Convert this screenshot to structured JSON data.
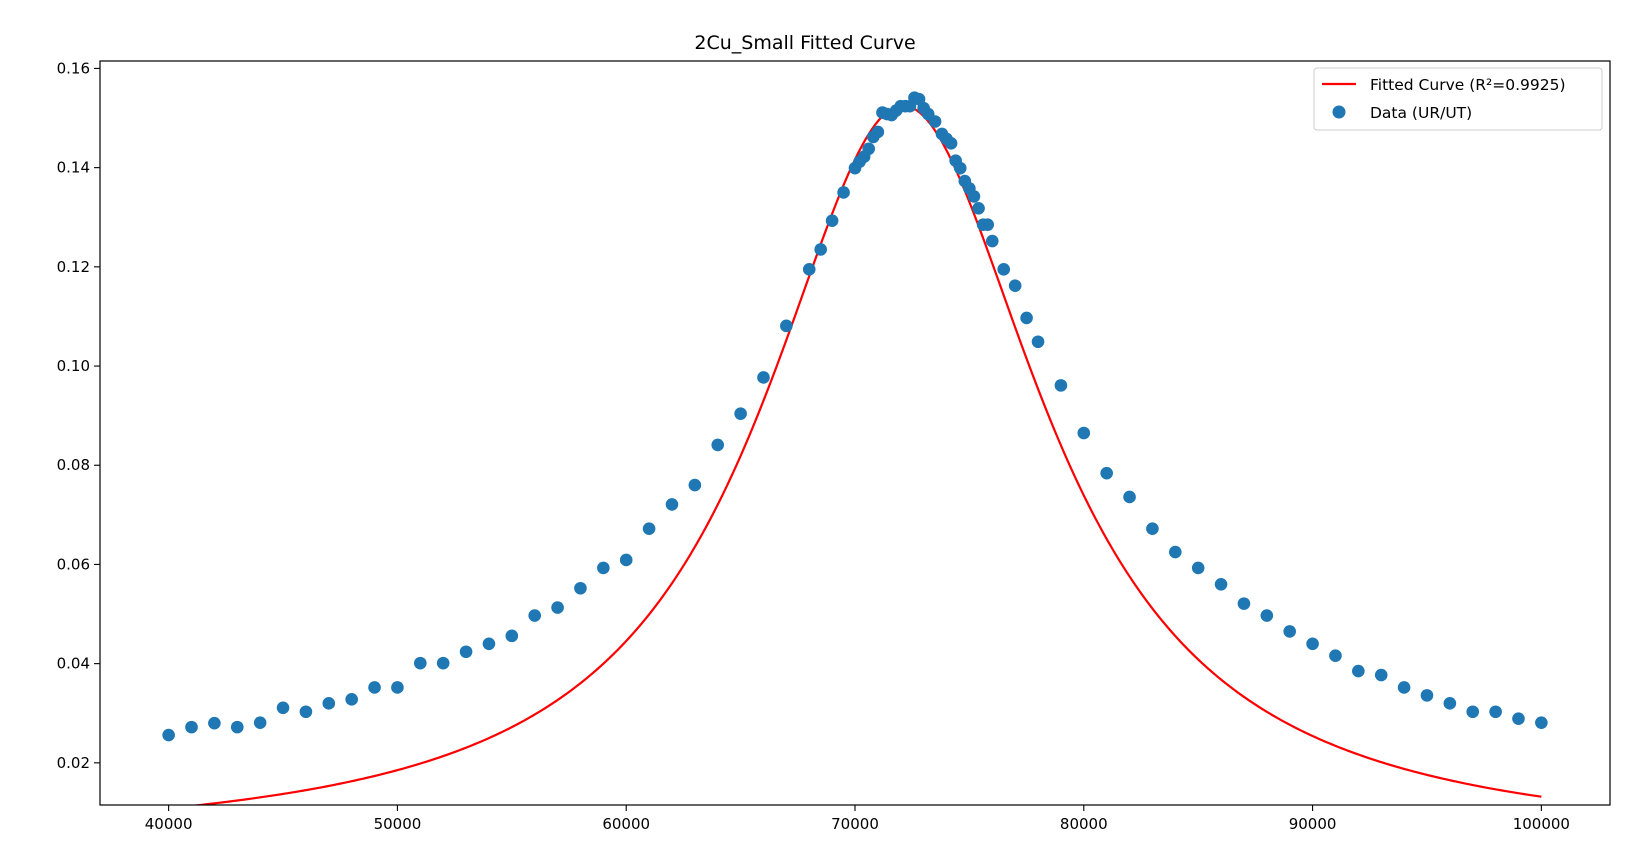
{
  "chart_data": {
    "type": "scatter",
    "title": "2Cu_Small Fitted Curve",
    "xlabel": "",
    "ylabel": "",
    "xlim": [
      37000,
      103000
    ],
    "ylim": [
      0.0115,
      0.1615
    ],
    "xticks": [
      40000,
      50000,
      60000,
      70000,
      80000,
      90000,
      100000
    ],
    "xtick_labels": [
      "40000",
      "50000",
      "60000",
      "70000",
      "80000",
      "90000",
      "100000"
    ],
    "yticks": [
      0.02,
      0.04,
      0.06,
      0.08,
      0.1,
      0.12,
      0.14,
      0.16
    ],
    "ytick_labels": [
      "0.02",
      "0.04",
      "0.06",
      "0.08",
      "0.10",
      "0.12",
      "0.14",
      "0.16"
    ],
    "grid": false,
    "legend": {
      "placement": "top-right"
    },
    "colors": {
      "fit": "#ff0000",
      "data": "#1f77b4"
    },
    "series": [
      {
        "name": "Fitted Curve (R²=0.9925)",
        "kind": "line",
        "model": {
          "form": "lorentzian",
          "peak_x": 72100,
          "peak_y": 0.1525,
          "half_width": 7500,
          "baseline": 0.0031
        },
        "x_range": [
          40000,
          100000
        ]
      },
      {
        "name": "Data (UR/UT)",
        "kind": "scatter",
        "points": [
          [
            40000,
            0.0256
          ],
          [
            41000,
            0.0272
          ],
          [
            42000,
            0.028
          ],
          [
            43000,
            0.0272
          ],
          [
            44000,
            0.0281
          ],
          [
            45000,
            0.0311
          ],
          [
            46000,
            0.0303
          ],
          [
            47000,
            0.032
          ],
          [
            48000,
            0.0328
          ],
          [
            49000,
            0.0352
          ],
          [
            50000,
            0.0352
          ],
          [
            51000,
            0.0401
          ],
          [
            52000,
            0.0401
          ],
          [
            53000,
            0.0424
          ],
          [
            54000,
            0.044
          ],
          [
            55000,
            0.0456
          ],
          [
            56000,
            0.0497
          ],
          [
            57000,
            0.0513
          ],
          [
            58000,
            0.0552
          ],
          [
            59000,
            0.0593
          ],
          [
            60000,
            0.0609
          ],
          [
            61000,
            0.0672
          ],
          [
            62000,
            0.0721
          ],
          [
            63000,
            0.076
          ],
          [
            64000,
            0.0841
          ],
          [
            65000,
            0.0904
          ],
          [
            66000,
            0.0977
          ],
          [
            67000,
            0.1081
          ],
          [
            68000,
            0.1195
          ],
          [
            68500,
            0.1235
          ],
          [
            69000,
            0.1293
          ],
          [
            69500,
            0.135
          ],
          [
            70000,
            0.1399
          ],
          [
            70200,
            0.1412
          ],
          [
            70400,
            0.1422
          ],
          [
            70600,
            0.1438
          ],
          [
            70800,
            0.1462
          ],
          [
            71000,
            0.1472
          ],
          [
            71200,
            0.1511
          ],
          [
            71400,
            0.1508
          ],
          [
            71600,
            0.1506
          ],
          [
            71800,
            0.1515
          ],
          [
            72000,
            0.1524
          ],
          [
            72200,
            0.1524
          ],
          [
            72400,
            0.1524
          ],
          [
            72600,
            0.1541
          ],
          [
            72800,
            0.1538
          ],
          [
            73000,
            0.152
          ],
          [
            73200,
            0.1508
          ],
          [
            73500,
            0.1493
          ],
          [
            73800,
            0.1468
          ],
          [
            74000,
            0.1458
          ],
          [
            74200,
            0.1449
          ],
          [
            74400,
            0.1414
          ],
          [
            74600,
            0.1399
          ],
          [
            74800,
            0.1373
          ],
          [
            75000,
            0.1358
          ],
          [
            75200,
            0.1342
          ],
          [
            75400,
            0.1318
          ],
          [
            75600,
            0.1285
          ],
          [
            75800,
            0.1285
          ],
          [
            76000,
            0.1252
          ],
          [
            76500,
            0.1195
          ],
          [
            77000,
            0.1162
          ],
          [
            77500,
            0.1097
          ],
          [
            78000,
            0.1049
          ],
          [
            79000,
            0.0961
          ],
          [
            80000,
            0.0865
          ],
          [
            81000,
            0.0784
          ],
          [
            82000,
            0.0736
          ],
          [
            83000,
            0.0672
          ],
          [
            84000,
            0.0625
          ],
          [
            85000,
            0.0593
          ],
          [
            86000,
            0.056
          ],
          [
            87000,
            0.0521
          ],
          [
            88000,
            0.0497
          ],
          [
            89000,
            0.0465
          ],
          [
            90000,
            0.044
          ],
          [
            91000,
            0.0416
          ],
          [
            92000,
            0.0385
          ],
          [
            93000,
            0.0377
          ],
          [
            94000,
            0.0352
          ],
          [
            95000,
            0.0336
          ],
          [
            96000,
            0.032
          ],
          [
            97000,
            0.0303
          ],
          [
            98000,
            0.0303
          ],
          [
            99000,
            0.0289
          ],
          [
            100000,
            0.0281
          ]
        ]
      }
    ]
  }
}
